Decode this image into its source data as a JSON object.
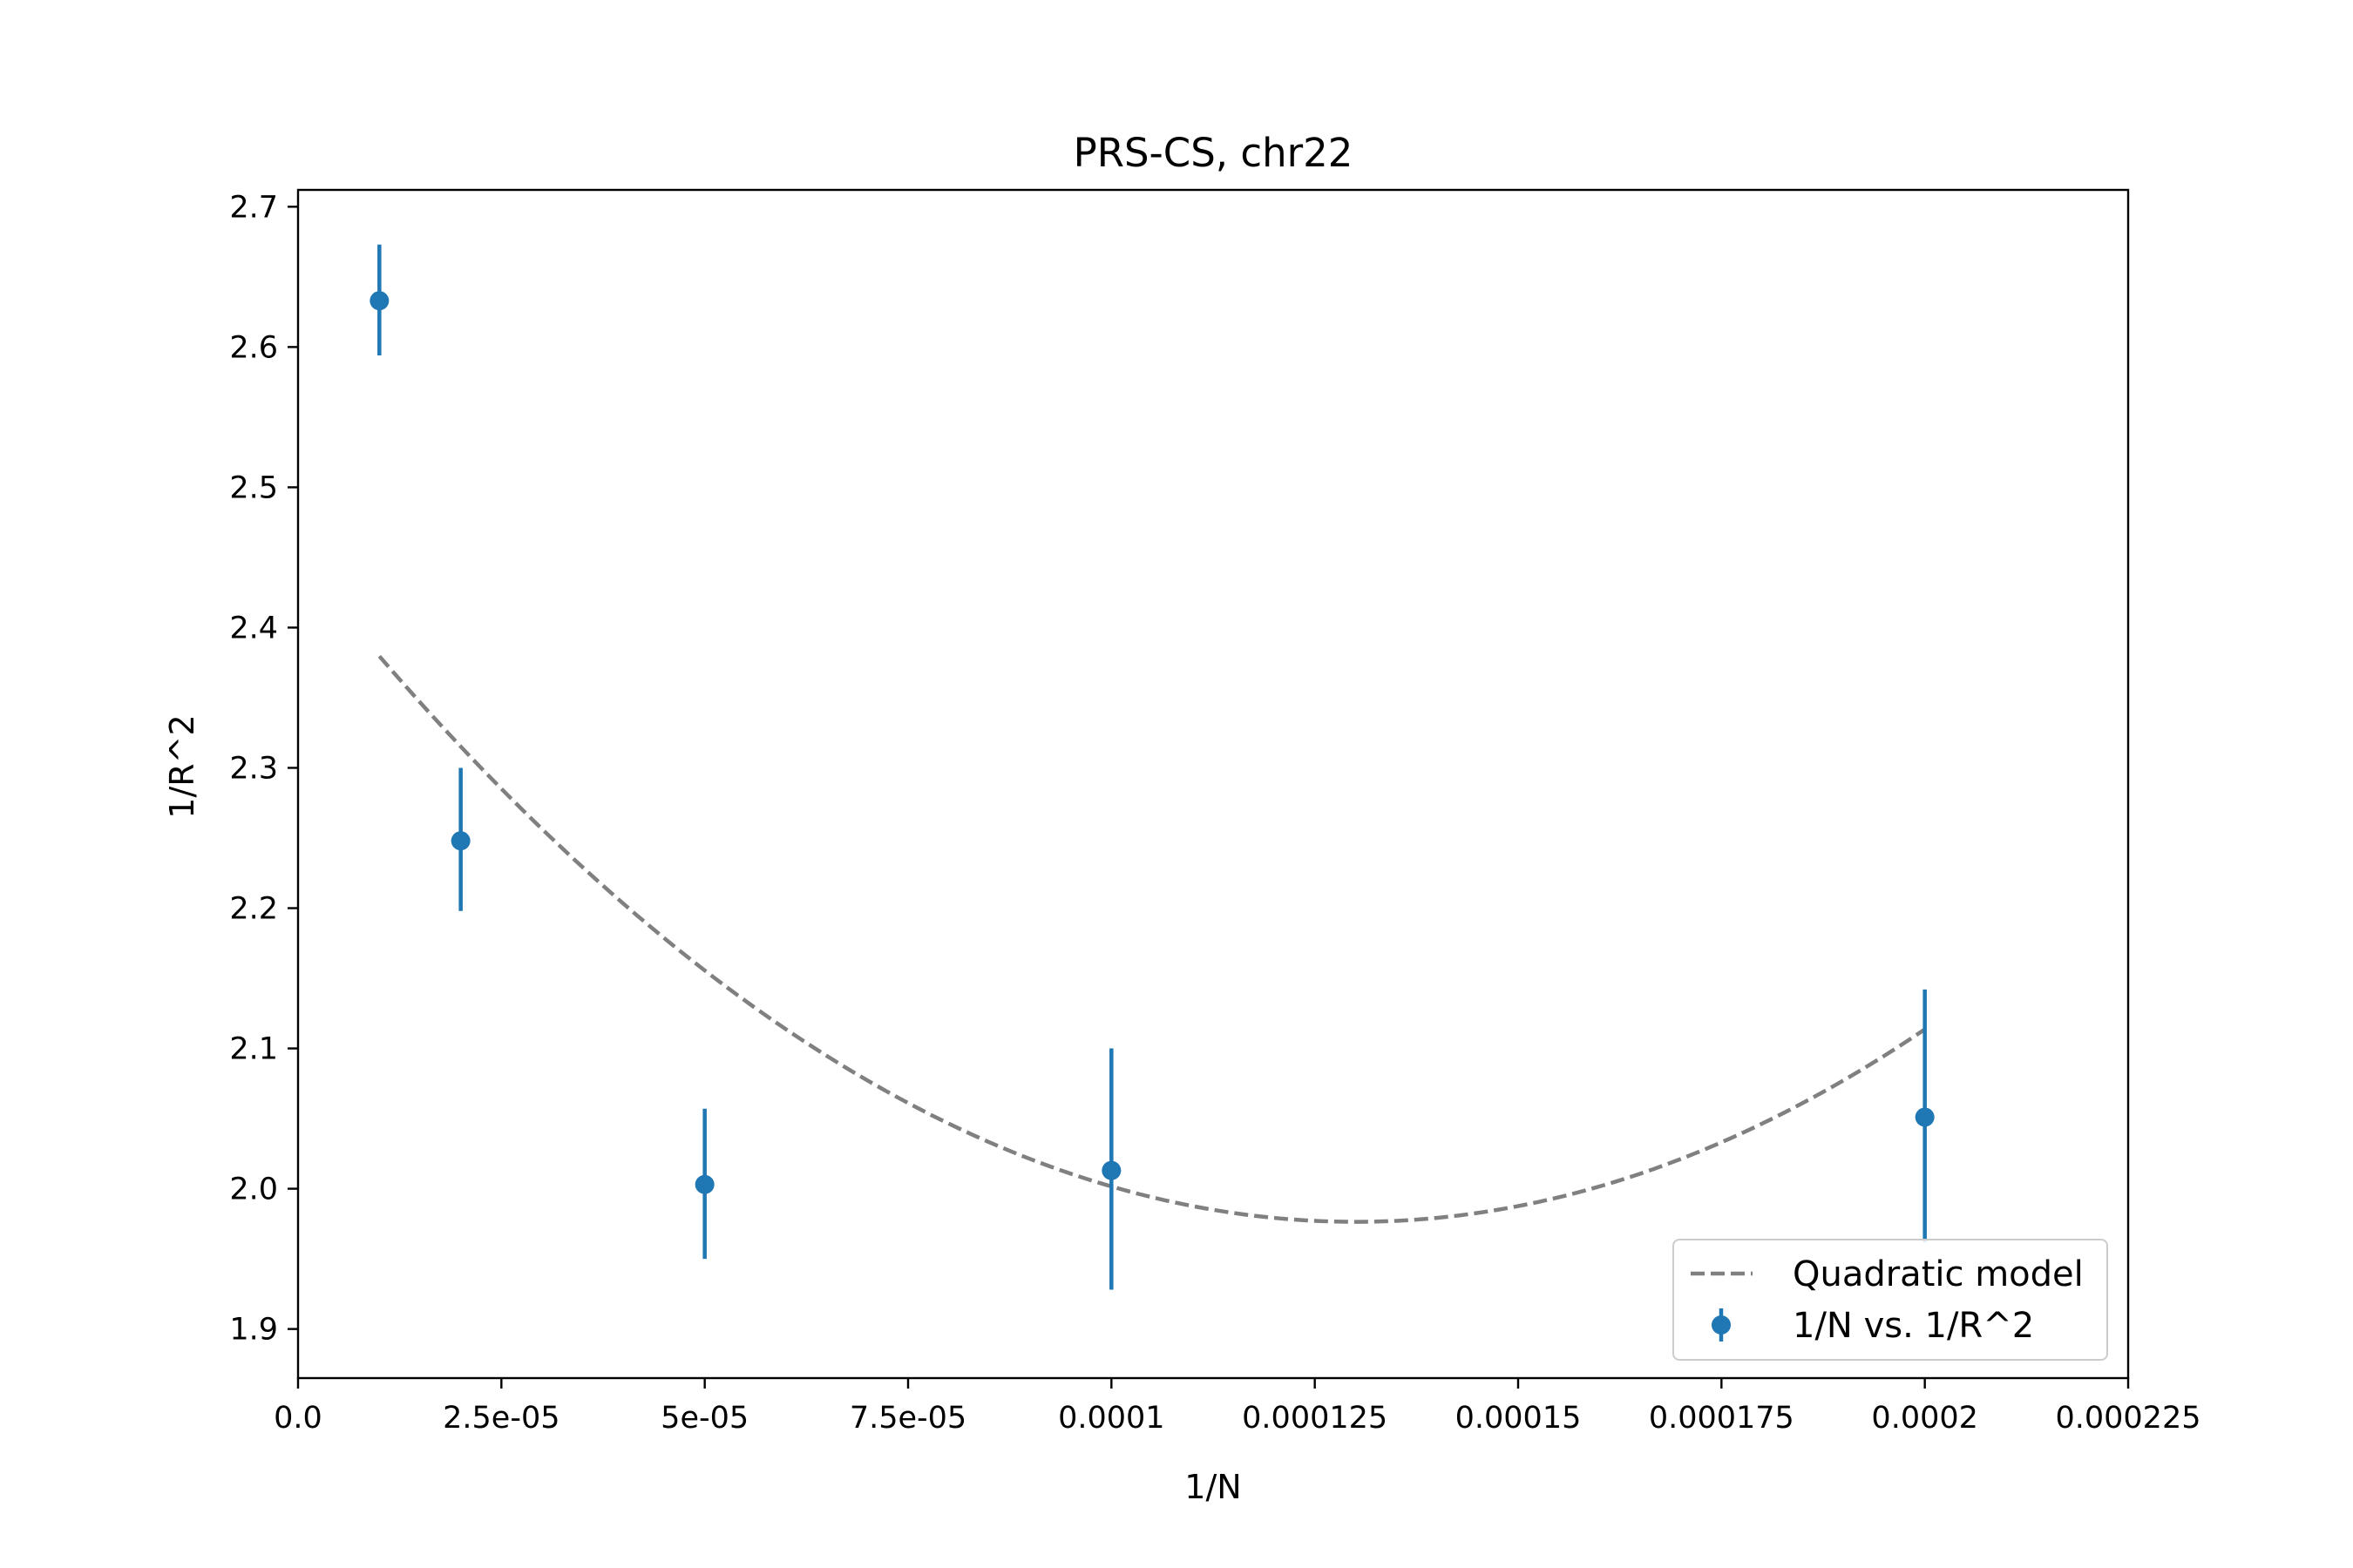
{
  "chart_data": {
    "type": "scatter",
    "title": "PRS-CS, chr22",
    "xlabel": "1/N",
    "ylabel": "1/R^2",
    "xlim": [
      0,
      0.000225
    ],
    "ylim": [
      1.865,
      2.712
    ],
    "grid": false,
    "legend_position": "bottom-right",
    "x_ticks": [
      {
        "value": 0,
        "label": "0.0"
      },
      {
        "value": 2.5e-05,
        "label": "2.5e-05"
      },
      {
        "value": 5e-05,
        "label": "5e-05"
      },
      {
        "value": 7.5e-05,
        "label": "7.5e-05"
      },
      {
        "value": 0.0001,
        "label": "0.0001"
      },
      {
        "value": 0.000125,
        "label": "0.000125"
      },
      {
        "value": 0.00015,
        "label": "0.00015"
      },
      {
        "value": 0.000175,
        "label": "0.000175"
      },
      {
        "value": 0.0002,
        "label": "0.0002"
      },
      {
        "value": 0.000225,
        "label": "0.000225"
      }
    ],
    "y_ticks": [
      {
        "value": 1.9,
        "label": "1.9"
      },
      {
        "value": 2.0,
        "label": "2.0"
      },
      {
        "value": 2.1,
        "label": "2.1"
      },
      {
        "value": 2.2,
        "label": "2.2"
      },
      {
        "value": 2.3,
        "label": "2.3"
      },
      {
        "value": 2.4,
        "label": "2.4"
      },
      {
        "value": 2.5,
        "label": "2.5"
      },
      {
        "value": 2.6,
        "label": "2.6"
      },
      {
        "value": 2.7,
        "label": "2.7"
      }
    ],
    "series": [
      {
        "name": "1/N vs. 1/R^2",
        "kind": "errorbar",
        "color": "#1f77b4",
        "x": [
          1e-05,
          2e-05,
          5e-05,
          0.0001,
          0.0002
        ],
        "y": [
          2.633,
          2.248,
          2.003,
          2.013,
          2.051
        ],
        "yerr_low": [
          2.594,
          2.198,
          1.95,
          1.928,
          1.962
        ],
        "yerr_high": [
          2.673,
          2.3,
          2.057,
          2.1,
          2.142
        ]
      },
      {
        "name": "Quadratic model",
        "kind": "line",
        "style": "dashed",
        "color": "#808080",
        "coefficients": {
          "a": 28000000,
          "b": -7280,
          "c": 2.4496
        },
        "x_range": [
          1e-05,
          0.0002
        ]
      }
    ]
  }
}
